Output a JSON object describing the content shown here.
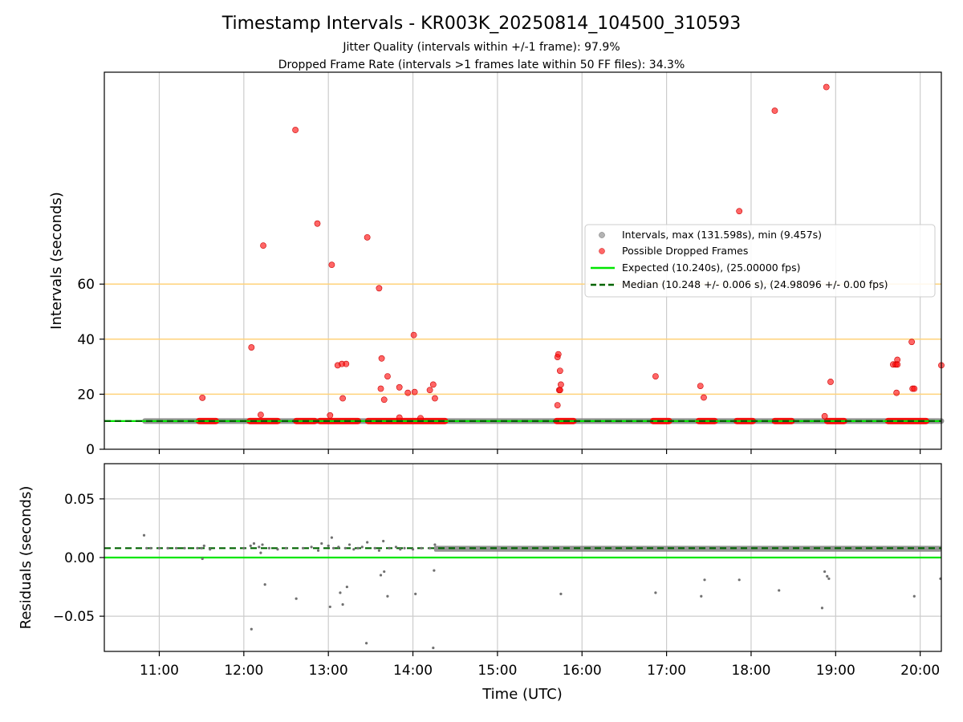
{
  "figure": {
    "title": "Timestamp Intervals - KR003K_20250814_104500_310593",
    "subtitle_1": "Jitter Quality (intervals within +/-1 frame): 97.9%",
    "subtitle_2": "Dropped Frame Rate (intervals >1 frames late within 50 FF files): 34.3%",
    "colors": {
      "intervals": "#808080",
      "dropped": "#ff0000",
      "expected": "#00e600",
      "median": "#006400",
      "threshold": "#ffd27a",
      "grid": "#cccccc"
    }
  },
  "chart_data": [
    {
      "type": "scatter",
      "ylabel": "Intervals (seconds)",
      "xlim": [
        10.35,
        20.25
      ],
      "ylim": [
        0,
        137
      ],
      "y_ticks": [
        0,
        20,
        40,
        60
      ],
      "threshold_lines": [
        20,
        40,
        60
      ],
      "grid": true,
      "legend_position": "center-right",
      "expected_value": 10.24,
      "median_value": 10.248,
      "series": [
        {
          "name": "Intervals, max (131.598s), min (9.457s)",
          "kind": "band",
          "x_range": [
            10.83,
            20.25
          ],
          "y": 10.25
        },
        {
          "name": "Possible Dropped Frames",
          "kind": "points",
          "points": [
            [
              11.51,
              18.7
            ],
            [
              12.09,
              37.0
            ],
            [
              12.2,
              12.5
            ],
            [
              12.23,
              74.0
            ],
            [
              12.61,
              116.0
            ],
            [
              12.87,
              82.0
            ],
            [
              13.02,
              12.3
            ],
            [
              13.04,
              67.0
            ],
            [
              13.11,
              30.5
            ],
            [
              13.16,
              31.0
            ],
            [
              13.17,
              18.5
            ],
            [
              13.21,
              31.0
            ],
            [
              13.46,
              77.0
            ],
            [
              13.6,
              58.5
            ],
            [
              13.62,
              22.0
            ],
            [
              13.63,
              33.0
            ],
            [
              13.66,
              18.0
            ],
            [
              13.7,
              26.5
            ],
            [
              13.84,
              22.5
            ],
            [
              13.84,
              11.5
            ],
            [
              13.94,
              20.5
            ],
            [
              14.01,
              41.5
            ],
            [
              14.02,
              20.8
            ],
            [
              14.09,
              11.3
            ],
            [
              14.2,
              21.5
            ],
            [
              14.24,
              23.5
            ],
            [
              14.26,
              18.5
            ],
            [
              15.71,
              16.0
            ],
            [
              15.71,
              33.5
            ],
            [
              15.72,
              34.5
            ],
            [
              15.73,
              21.5
            ],
            [
              15.74,
              28.5
            ],
            [
              15.74,
              21.5
            ],
            [
              15.75,
              23.5
            ],
            [
              16.87,
              26.5
            ],
            [
              17.4,
              23.0
            ],
            [
              17.44,
              18.8
            ],
            [
              17.86,
              86.5
            ],
            [
              18.28,
              123.0
            ],
            [
              18.87,
              12.0
            ],
            [
              18.89,
              131.6
            ],
            [
              18.94,
              24.5
            ],
            [
              19.68,
              30.8
            ],
            [
              19.71,
              30.8
            ],
            [
              19.72,
              20.5
            ],
            [
              19.73,
              32.5
            ],
            [
              19.73,
              30.8
            ],
            [
              19.9,
              39.0
            ],
            [
              19.91,
              22.0
            ],
            [
              19.93,
              22.0
            ],
            [
              20.25,
              30.5
            ]
          ],
          "dense_runs": [
            [
              11.47,
              11.67
            ],
            [
              12.07,
              12.4
            ],
            [
              12.62,
              12.84
            ],
            [
              12.9,
              13.35
            ],
            [
              13.47,
              14.38
            ],
            [
              15.7,
              15.9
            ],
            [
              16.84,
              17.03
            ],
            [
              17.38,
              17.57
            ],
            [
              17.83,
              18.02
            ],
            [
              18.28,
              18.48
            ],
            [
              18.9,
              19.1
            ],
            [
              19.62,
              20.07
            ]
          ],
          "dense_y": 10.25
        }
      ],
      "lines": [
        {
          "name": "Expected (10.240s), (25.00000 fps)",
          "style": "solid",
          "value": 10.24
        },
        {
          "name": "Median (10.248 +/- 0.006 s), (24.98096 +/- 0.00 fps)",
          "style": "dashed",
          "value": 10.248
        }
      ]
    },
    {
      "type": "scatter",
      "xlabel": "Time (UTC)",
      "ylabel": "Residuals (seconds)",
      "xlim": [
        10.35,
        20.25
      ],
      "ylim": [
        -0.08,
        0.08
      ],
      "y_ticks": [
        -0.05,
        0.0,
        0.05
      ],
      "y_tick_labels": [
        "−0.05",
        "0.00",
        "0.05"
      ],
      "x_ticks": [
        11,
        12,
        13,
        14,
        15,
        16,
        17,
        18,
        19,
        20
      ],
      "x_tick_labels": [
        "11:00",
        "12:00",
        "13:00",
        "14:00",
        "15:00",
        "16:00",
        "17:00",
        "18:00",
        "19:00",
        "20:00"
      ],
      "grid": true,
      "expected_residual": 0.0,
      "median_residual": 0.008,
      "band": {
        "x_range": [
          14.25,
          20.25
        ],
        "center": 0.0075,
        "half_width": 0.0025
      },
      "points": [
        [
          10.82,
          0.019
        ],
        [
          10.85,
          0.008
        ],
        [
          10.9,
          0.008
        ],
        [
          11.0,
          0.008
        ],
        [
          11.1,
          0.008
        ],
        [
          11.2,
          0.008
        ],
        [
          11.3,
          0.008
        ],
        [
          11.45,
          0.008
        ],
        [
          11.5,
          0.008
        ],
        [
          11.51,
          -0.001
        ],
        [
          11.53,
          0.01
        ],
        [
          11.6,
          0.007
        ],
        [
          12.0,
          0.008
        ],
        [
          12.08,
          0.01
        ],
        [
          12.09,
          -0.061
        ],
        [
          12.12,
          0.012
        ],
        [
          12.18,
          0.009
        ],
        [
          12.2,
          0.004
        ],
        [
          12.22,
          0.011
        ],
        [
          12.25,
          -0.023
        ],
        [
          12.3,
          0.008
        ],
        [
          12.4,
          0.007
        ],
        [
          12.5,
          0.008
        ],
        [
          12.62,
          -0.035
        ],
        [
          12.7,
          0.008
        ],
        [
          12.8,
          0.009
        ],
        [
          12.88,
          0.006
        ],
        [
          12.92,
          0.012
        ],
        [
          13.0,
          0.01
        ],
        [
          13.02,
          -0.042
        ],
        [
          13.04,
          0.017
        ],
        [
          13.06,
          0.008
        ],
        [
          13.12,
          0.009
        ],
        [
          13.14,
          -0.03
        ],
        [
          13.17,
          -0.04
        ],
        [
          13.2,
          0.008
        ],
        [
          13.22,
          -0.025
        ],
        [
          13.25,
          0.011
        ],
        [
          13.3,
          0.007
        ],
        [
          13.35,
          0.008
        ],
        [
          13.4,
          0.009
        ],
        [
          13.45,
          -0.073
        ],
        [
          13.46,
          0.013
        ],
        [
          13.55,
          0.008
        ],
        [
          13.6,
          0.006
        ],
        [
          13.62,
          -0.015
        ],
        [
          13.65,
          0.014
        ],
        [
          13.66,
          -0.012
        ],
        [
          13.7,
          -0.033
        ],
        [
          13.72,
          0.008
        ],
        [
          13.8,
          0.009
        ],
        [
          13.85,
          0.007
        ],
        [
          13.9,
          0.008
        ],
        [
          14.0,
          0.007
        ],
        [
          14.03,
          -0.031
        ],
        [
          14.1,
          0.008
        ],
        [
          14.2,
          0.008
        ],
        [
          14.24,
          -0.077
        ],
        [
          14.25,
          -0.011
        ],
        [
          14.26,
          0.011
        ],
        [
          15.75,
          -0.031
        ],
        [
          16.87,
          -0.03
        ],
        [
          17.41,
          -0.033
        ],
        [
          17.45,
          -0.019
        ],
        [
          17.86,
          -0.019
        ],
        [
          18.33,
          -0.028
        ],
        [
          18.84,
          -0.043
        ],
        [
          18.87,
          -0.012
        ],
        [
          18.9,
          -0.016
        ],
        [
          18.92,
          -0.018
        ],
        [
          19.93,
          -0.033
        ],
        [
          20.24,
          -0.018
        ]
      ]
    }
  ]
}
